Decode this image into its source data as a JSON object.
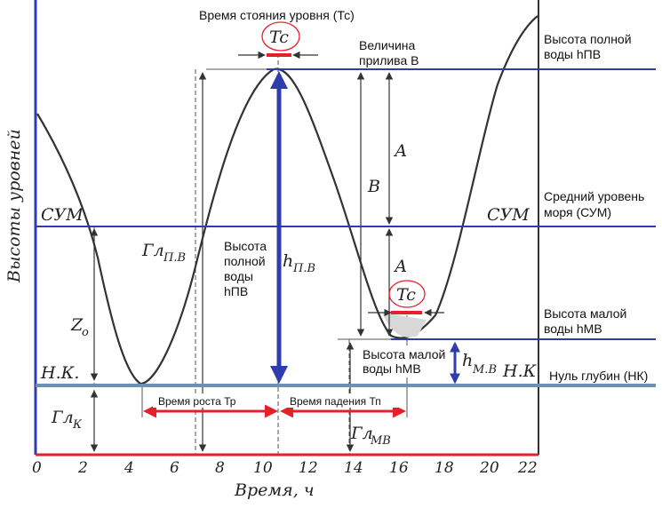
{
  "labels": {
    "tc_title": "Время стояния уровня (Тс)",
    "tc_symbol": "Tc",
    "b_value_line1": "Величина",
    "b_value_line2": "прилива В",
    "full_water_line1": "Высота полной",
    "full_water_line2": "воды hПВ",
    "mean_level_line1": "Средний уровень",
    "mean_level_line2": "моря (СУМ)",
    "low_water_line1": "Высота малой",
    "low_water_line2": "воды hМВ",
    "zero_depth": "Нуль глубин (НК)",
    "inner_full_1": "Высота",
    "inner_full_2": "полной",
    "inner_full_3": "воды",
    "inner_full_4": "hПВ",
    "inner_low_1": "Высота малой",
    "inner_low_2": "воды hМВ",
    "rise_time": "Время роста Тр",
    "fall_time": "Время падения Тп"
  },
  "hand": {
    "y_axis": "Высоты уровней",
    "x_axis": "Время, ч",
    "sum_left": "СУМ",
    "sum_right": "СУМ",
    "nk_left": "Н.К.",
    "nk_right": "Н.К",
    "zo": "Z",
    "zo_sub": "о",
    "gl_k": "Гл",
    "gl_k_sub": "К",
    "gl_pv": "Гл",
    "gl_pv_sub": "П.В",
    "h_pv": "h",
    "h_pv_sub": "П.В",
    "gl_mv": "Гл",
    "gl_mv_sub": "МВ",
    "h_mv": "h",
    "h_mv_sub": "М.В",
    "a_upper": "А",
    "a_lower": "А",
    "b": "В"
  },
  "x_ticks": [
    "0",
    "2",
    "4",
    "6",
    "8",
    "10",
    "12",
    "14",
    "16",
    "18",
    "20",
    "22"
  ],
  "colors": {
    "blue": "#2e3cae",
    "red": "#e4202a",
    "steel": "#6b8fb5",
    "ink": "#333333"
  }
}
